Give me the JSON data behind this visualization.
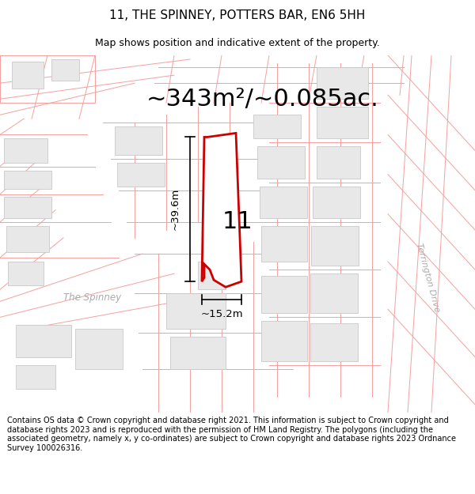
{
  "title": "11, THE SPINNEY, POTTERS BAR, EN6 5HH",
  "subtitle": "Map shows position and indicative extent of the property.",
  "area_text": "~343m²/~0.085ac.",
  "footnote": "Contains OS data © Crown copyright and database right 2021. This information is subject to Crown copyright and database rights 2023 and is reproduced with the permission of HM Land Registry. The polygons (including the associated geometry, namely x, y co-ordinates) are subject to Crown copyright and database rights 2023 Ordnance Survey 100026316.",
  "bg_color": "#ffffff",
  "map_bg": "#ffffff",
  "road_color": "#f5a0a0",
  "road_lw": 0.7,
  "building_color": "#e8e8e8",
  "building_edge": "#c8c8c8",
  "building_lw": 0.6,
  "plot_color": "#ffffff",
  "plot_edge": "#cc0000",
  "plot_edge_width": 2.0,
  "dim_color": "#000000",
  "label_color": "#000000",
  "street_label": "The Spinney",
  "side_label": "Torrington Drive",
  "plot_number": "11",
  "width_label": "~15.2m",
  "height_label": "~39.6m",
  "figsize": [
    6.0,
    6.25
  ],
  "dpi": 100,
  "title_fontsize": 11,
  "subtitle_fontsize": 9,
  "area_fontsize": 22,
  "footnote_fontsize": 7
}
